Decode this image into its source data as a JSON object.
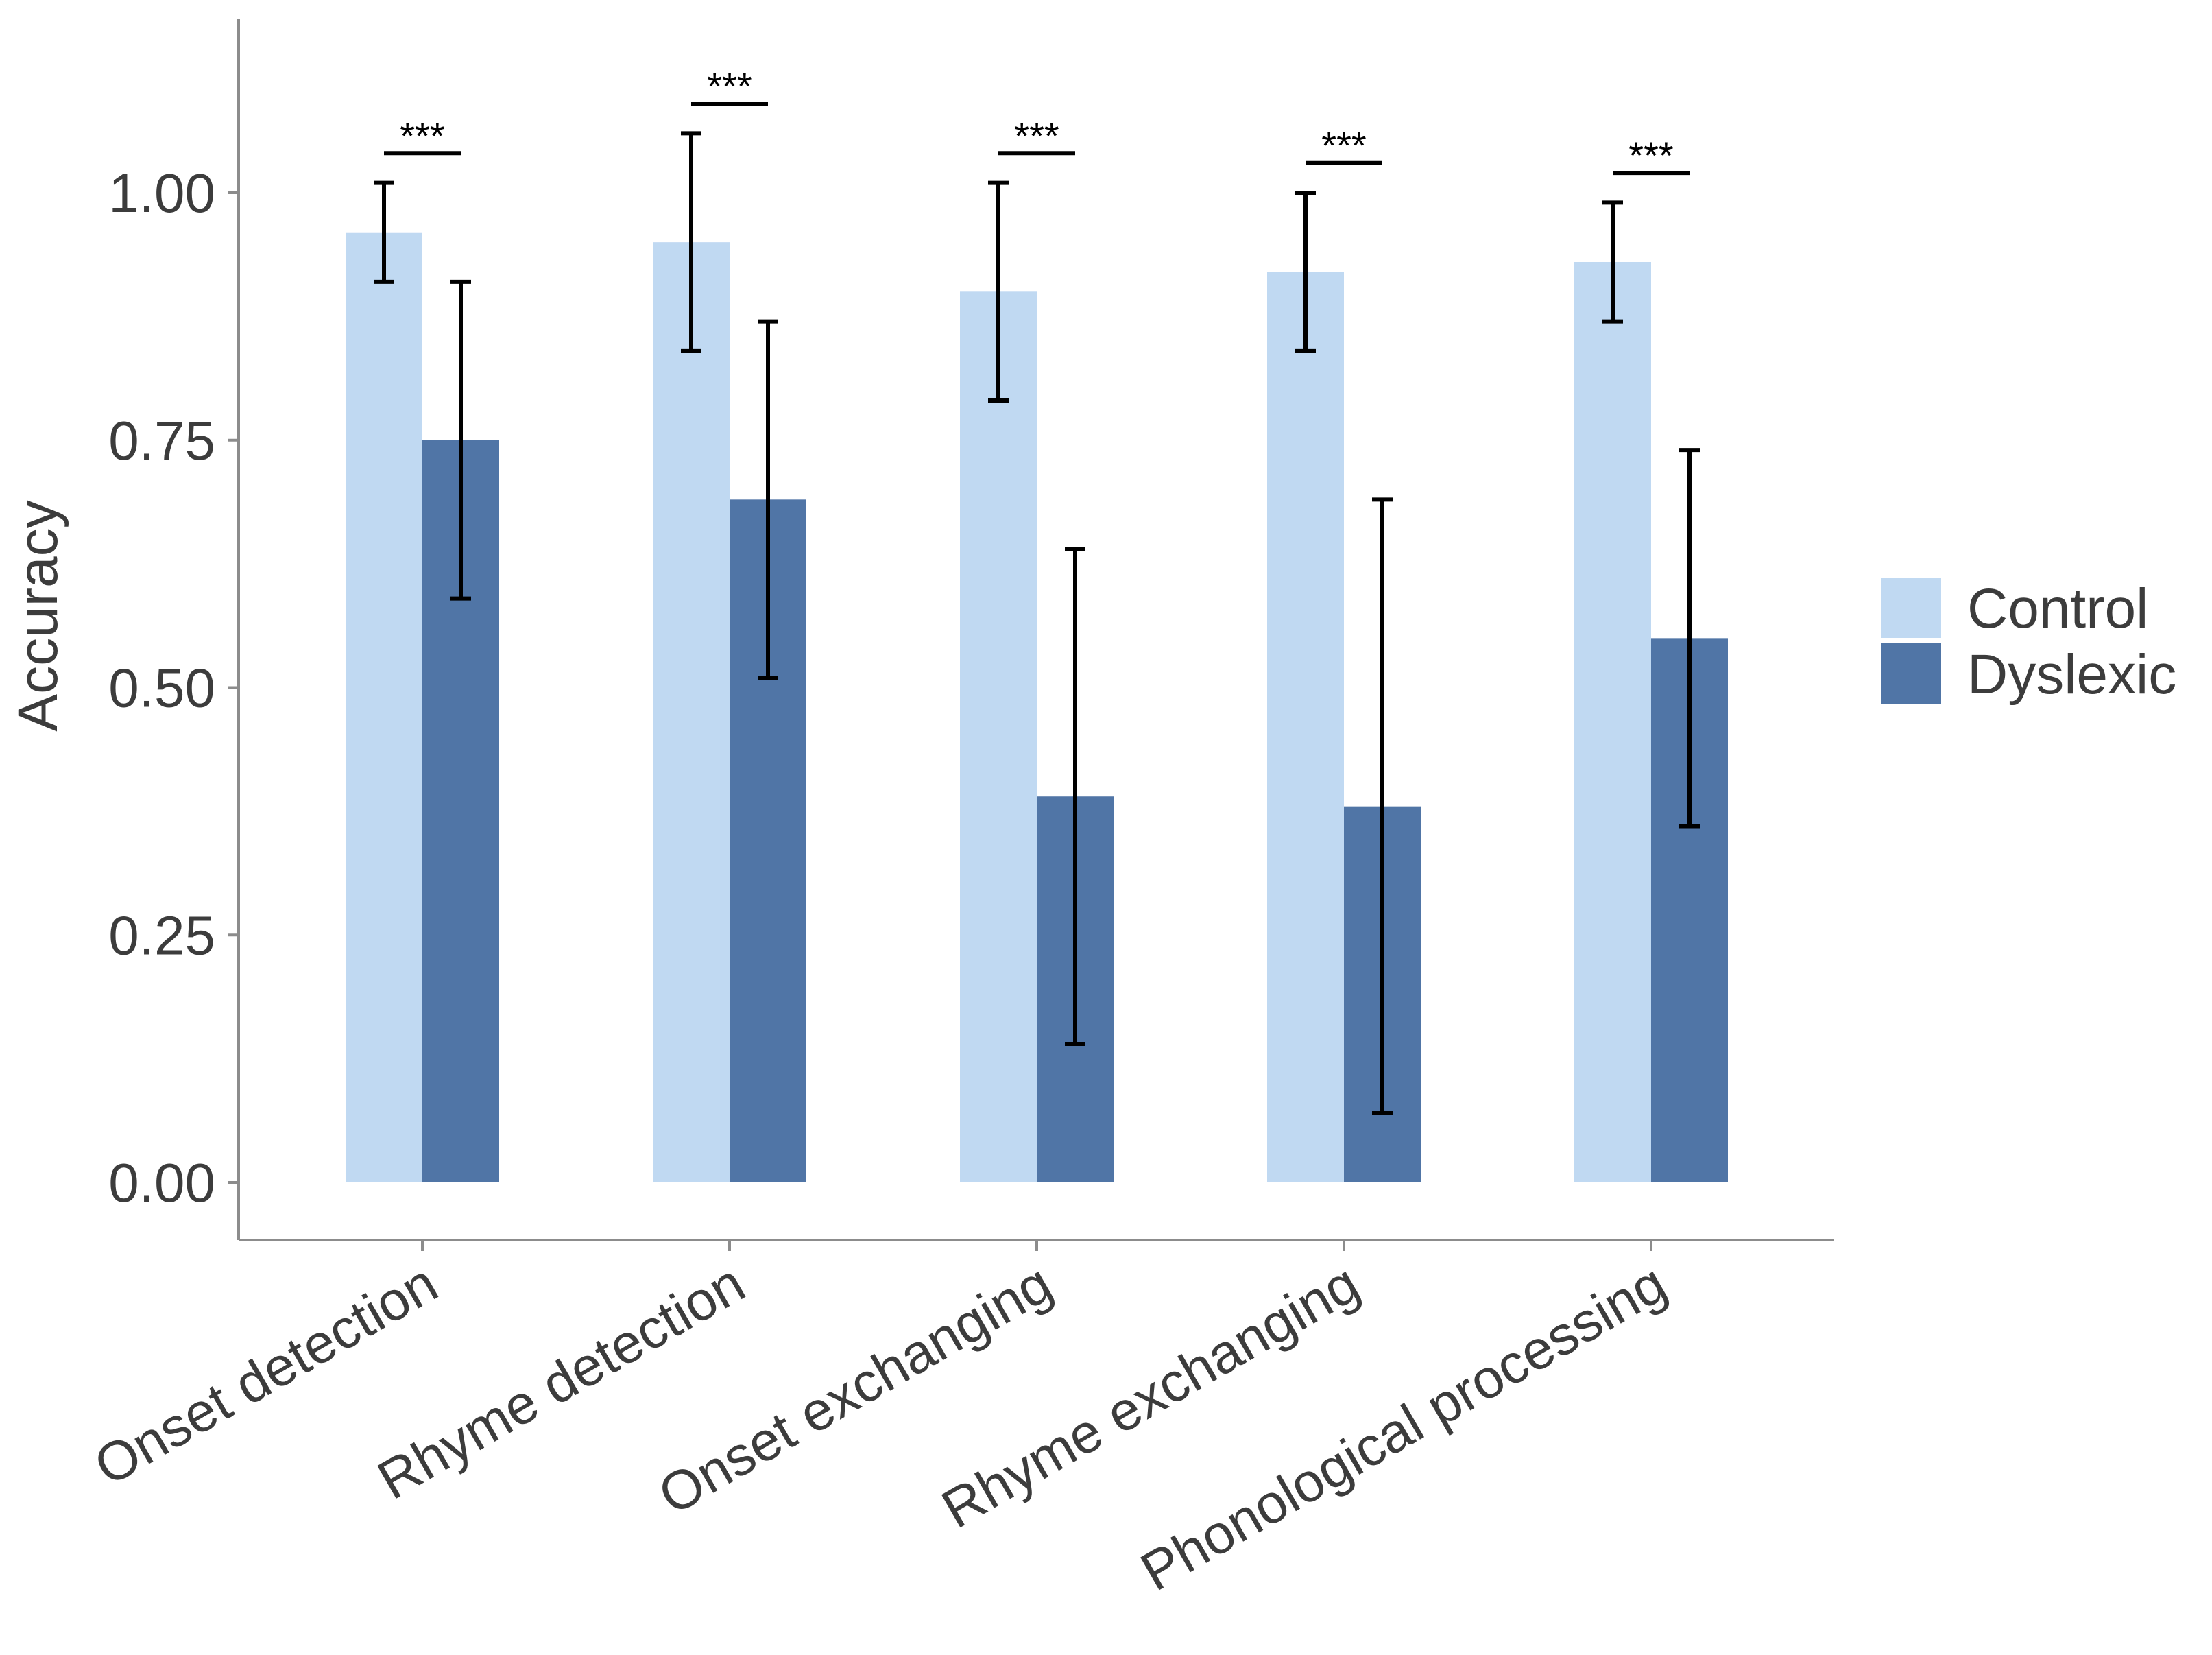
{
  "chart_data": {
    "type": "bar",
    "title": "",
    "xlabel": "",
    "ylabel": "Accuracy",
    "ylim": [
      -0.06,
      1.18
    ],
    "yticks": [
      0.0,
      0.25,
      0.5,
      0.75,
      1.0
    ],
    "ytick_labels": [
      "0.00",
      "0.25",
      "0.50",
      "0.75",
      "1.00"
    ],
    "categories": [
      "Onset detection",
      "Rhyme detection",
      "Onset exchanging",
      "Rhyme exchanging",
      "Phonological processing"
    ],
    "series": [
      {
        "name": "Control",
        "color": "#c0d9f2",
        "values": [
          0.96,
          0.95,
          0.9,
          0.92,
          0.93
        ],
        "err_low": [
          0.91,
          0.84,
          0.79,
          0.84,
          0.87
        ],
        "err_high": [
          1.01,
          1.06,
          1.01,
          1.0,
          0.99
        ]
      },
      {
        "name": "Dyslexic",
        "color": "#5075a6",
        "values": [
          0.75,
          0.69,
          0.39,
          0.38,
          0.55
        ],
        "err_low": [
          0.59,
          0.51,
          0.14,
          0.07,
          0.36
        ],
        "err_high": [
          0.91,
          0.87,
          0.64,
          0.69,
          0.74
        ]
      }
    ],
    "significance": [
      {
        "label": "***",
        "level": 1.04
      },
      {
        "label": "***",
        "level": 1.09
      },
      {
        "label": "***",
        "level": 1.04
      },
      {
        "label": "***",
        "level": 1.03
      },
      {
        "label": "***",
        "level": 1.02
      }
    ],
    "grid": false,
    "legend": "right"
  }
}
